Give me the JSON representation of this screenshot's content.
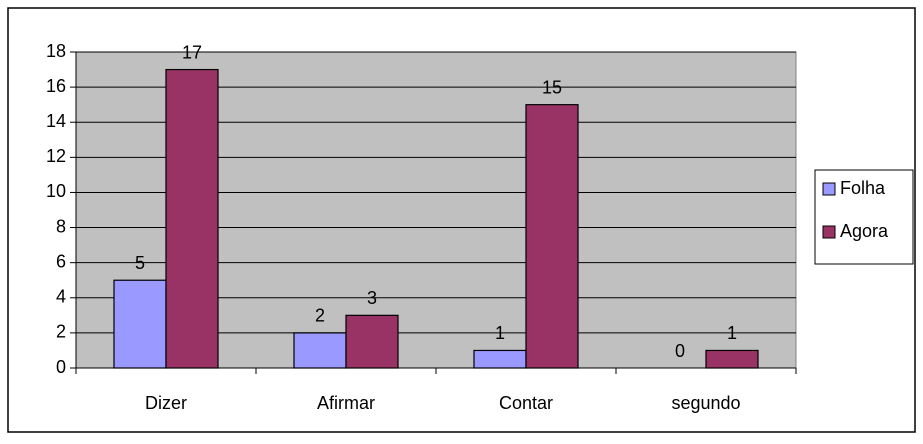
{
  "chart_data": {
    "type": "bar",
    "categories": [
      "Dizer",
      "Afirmar",
      "Contar",
      "segundo"
    ],
    "series": [
      {
        "name": "Folha",
        "color": "#9999ff",
        "values": [
          5,
          2,
          1,
          0
        ]
      },
      {
        "name": "Agora",
        "color": "#993366",
        "values": [
          17,
          3,
          15,
          1
        ]
      }
    ],
    "ylim": [
      0,
      18
    ],
    "yticks": [
      0,
      2,
      4,
      6,
      8,
      10,
      12,
      14,
      16,
      18
    ],
    "grid": true,
    "plot_background": "#c0c0c0",
    "legend": "right"
  }
}
